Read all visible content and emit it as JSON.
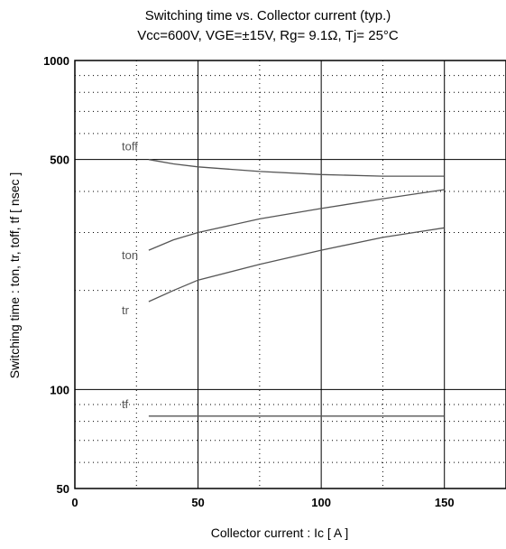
{
  "chart_data": {
    "type": "line",
    "title": "Switching time  vs.  Collector current  (typ.)",
    "subtitle": "Vcc=600V, VGE=±15V, Rg= 9.1Ω, Tj= 25°C",
    "xlabel": "Collector current  :  Ic  [ A ]",
    "ylabel": "Switching time  :  ton, tr, toff, tf  [ nsec ]",
    "xlim": [
      0,
      175
    ],
    "ylim": [
      50,
      1000
    ],
    "yscale": "log",
    "grid": true,
    "x_ticks": [
      "0",
      "50",
      "100",
      "150"
    ],
    "y_ticks": [
      "50",
      "100",
      "500",
      "1000"
    ],
    "series": [
      {
        "name": "toff",
        "x": [
          30,
          40,
          50,
          75,
          100,
          125,
          150
        ],
        "values": [
          500,
          485,
          475,
          460,
          450,
          445,
          445
        ]
      },
      {
        "name": "ton",
        "x": [
          30,
          40,
          50,
          75,
          100,
          125,
          150
        ],
        "values": [
          265,
          285,
          300,
          330,
          355,
          380,
          405
        ]
      },
      {
        "name": "tr",
        "x": [
          30,
          40,
          50,
          75,
          100,
          125,
          150
        ],
        "values": [
          185,
          200,
          215,
          240,
          265,
          290,
          310
        ]
      },
      {
        "name": "tf",
        "x": [
          30,
          40,
          50,
          75,
          100,
          125,
          150
        ],
        "values": [
          83,
          83,
          83,
          83,
          83,
          83,
          83
        ]
      }
    ]
  }
}
